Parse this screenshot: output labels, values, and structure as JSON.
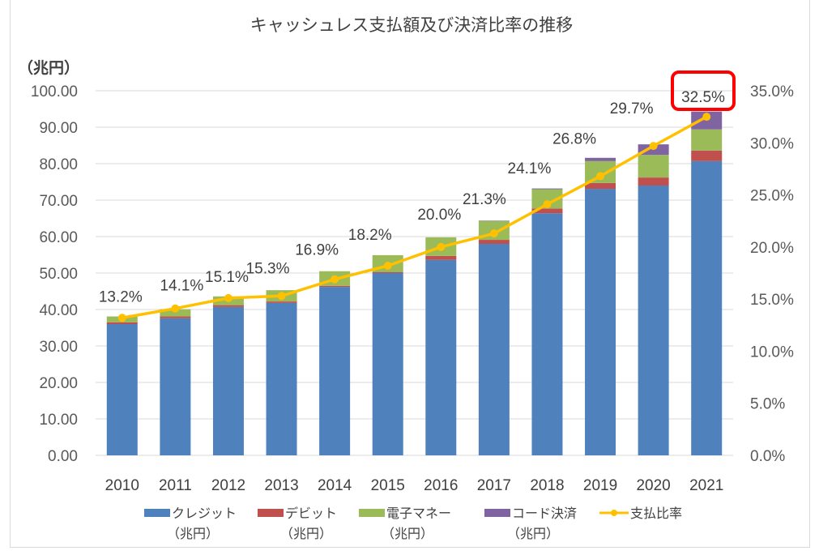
{
  "chart_data": {
    "type": "bar",
    "subtype": "stacked-bar-with-line",
    "title": "キャッシュレス支払額及び決済比率の推移",
    "y_unit_label": "（兆円）",
    "categories": [
      "2010",
      "2011",
      "2012",
      "2013",
      "2014",
      "2015",
      "2016",
      "2017",
      "2018",
      "2019",
      "2020",
      "2021"
    ],
    "series": [
      {
        "name": "クレジット",
        "name_sub": "（兆円）",
        "color": "#4f81bd",
        "axis": "left",
        "values": [
          36.0,
          37.6,
          40.7,
          41.8,
          46.2,
          50.0,
          53.6,
          58.0,
          66.4,
          73.1,
          74.0,
          80.7
        ]
      },
      {
        "name": "デビット",
        "name_sub": "（兆円）",
        "color": "#c0504d",
        "axis": "left",
        "values": [
          0.5,
          0.5,
          0.5,
          0.4,
          0.3,
          0.3,
          1.1,
          1.1,
          1.3,
          1.6,
          2.2,
          2.9
        ]
      },
      {
        "name": "電子マネー",
        "name_sub": "（兆円）",
        "color": "#9bbb59",
        "axis": "left",
        "values": [
          1.6,
          2.0,
          2.4,
          3.1,
          4.0,
          4.6,
          5.1,
          5.2,
          5.3,
          6.0,
          6.2,
          5.8
        ]
      },
      {
        "name": "コード決済",
        "name_sub": "（兆円）",
        "color": "#8064a2",
        "axis": "left",
        "values": [
          0,
          0,
          0,
          0,
          0,
          0,
          0,
          0.1,
          0.2,
          0.9,
          2.9,
          4.9
        ]
      },
      {
        "name": "支払比率",
        "name_sub": "",
        "color": "#ffc000",
        "axis": "right",
        "type": "line",
        "values": [
          13.2,
          14.1,
          15.1,
          15.3,
          16.9,
          18.2,
          20.0,
          21.3,
          24.1,
          26.8,
          29.7,
          32.5
        ],
        "labels": [
          "13.2%",
          "14.1%",
          "15.1%",
          "15.3%",
          "16.9%",
          "18.2%",
          "20.0%",
          "21.3%",
          "24.1%",
          "26.8%",
          "29.7%",
          "32.5%"
        ]
      }
    ],
    "left_axis": {
      "ylim": [
        0,
        100
      ],
      "ticks": [
        "0.00",
        "10.00",
        "20.00",
        "30.00",
        "40.00",
        "50.00",
        "60.00",
        "70.00",
        "80.00",
        "90.00",
        "100.00"
      ]
    },
    "right_axis": {
      "ylim": [
        0,
        35
      ],
      "ticks": [
        "0.0%",
        "5.0%",
        "10.0%",
        "15.0%",
        "20.0%",
        "25.0%",
        "30.0%",
        "35.0%"
      ]
    },
    "highlight": {
      "category": "2021",
      "label": "32.5%",
      "color": "#ff0000"
    },
    "grid": true,
    "legend_position": "bottom",
    "xlabel": "",
    "ylabel": "（兆円）"
  }
}
